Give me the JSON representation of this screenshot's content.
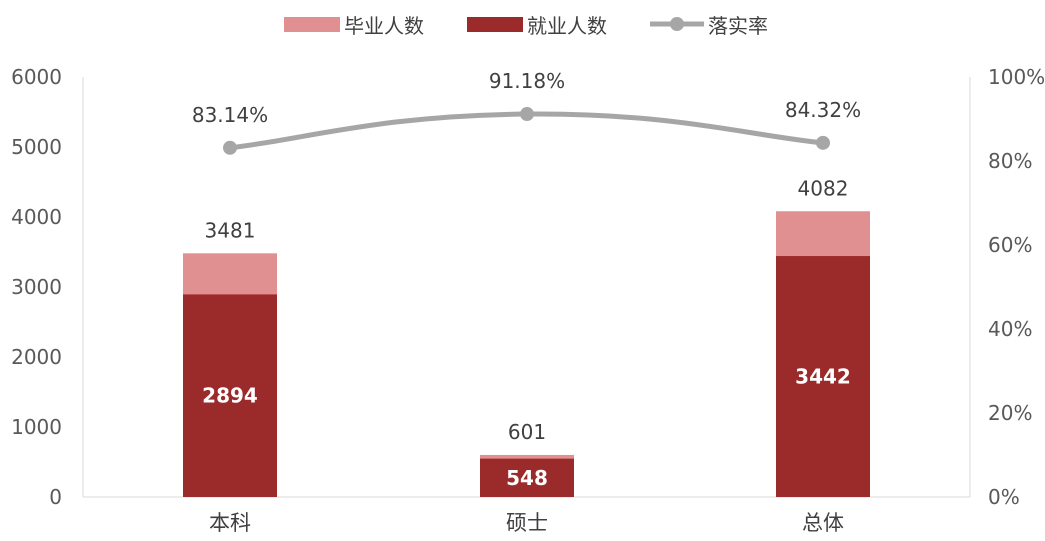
{
  "chart_data": {
    "type": "bar",
    "categories": [
      "本科",
      "硕士",
      "总体"
    ],
    "series": [
      {
        "name": "毕业人数",
        "type": "bar",
        "axis": "left",
        "values": [
          3481,
          601,
          4082
        ],
        "color": "#e09090"
      },
      {
        "name": "就业人数",
        "type": "bar",
        "axis": "left",
        "values": [
          2894,
          548,
          3442
        ],
        "color": "#9b2a2a"
      },
      {
        "name": "落实率",
        "type": "line",
        "axis": "right",
        "values": [
          83.14,
          91.18,
          84.32
        ],
        "color": "#a6a6a6"
      }
    ],
    "graduates_labels": [
      "3481",
      "601",
      "4082"
    ],
    "employed_labels": [
      "2894",
      "548",
      "3442"
    ],
    "rate_labels": [
      "83.14%",
      "91.18%",
      "84.32%"
    ],
    "ylim": [
      0,
      6000
    ],
    "yticks": [
      "0",
      "1000",
      "2000",
      "3000",
      "4000",
      "5000",
      "6000"
    ],
    "y2lim": [
      0,
      100
    ],
    "y2ticks": [
      "0%",
      "20%",
      "40%",
      "60%",
      "80%",
      "100%"
    ],
    "legend_position": "top",
    "grid": false
  }
}
